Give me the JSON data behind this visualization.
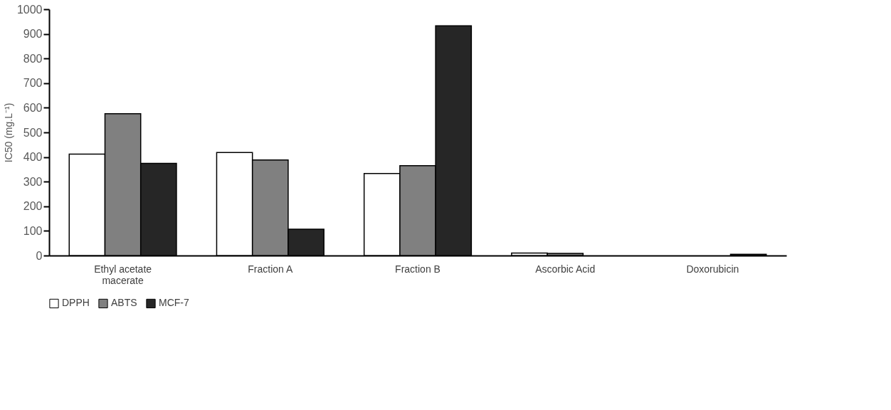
{
  "chart_data": {
    "type": "bar",
    "ylabel": "IC50 (mg.L⁻¹)",
    "categories": [
      "Ethyl acetate macerate",
      "Fraction A",
      "Fraction B",
      "Ascorbic Acid",
      "Doxorubicin"
    ],
    "series": [
      {
        "name": "DPPH",
        "color": "#ffffff",
        "values": [
          412,
          418,
          333,
          10,
          null
        ]
      },
      {
        "name": "ABTS",
        "color": "#808080",
        "values": [
          576,
          388,
          365,
          9,
          null
        ]
      },
      {
        "name": "MCF-7",
        "color": "#262626",
        "values": [
          374,
          107,
          933,
          null,
          5
        ]
      }
    ],
    "ylim": [
      0,
      1000
    ],
    "yticks": [
      0,
      100,
      200,
      300,
      400,
      500,
      600,
      700,
      800,
      900,
      1000
    ],
    "grid": false,
    "legend": "bottom"
  }
}
